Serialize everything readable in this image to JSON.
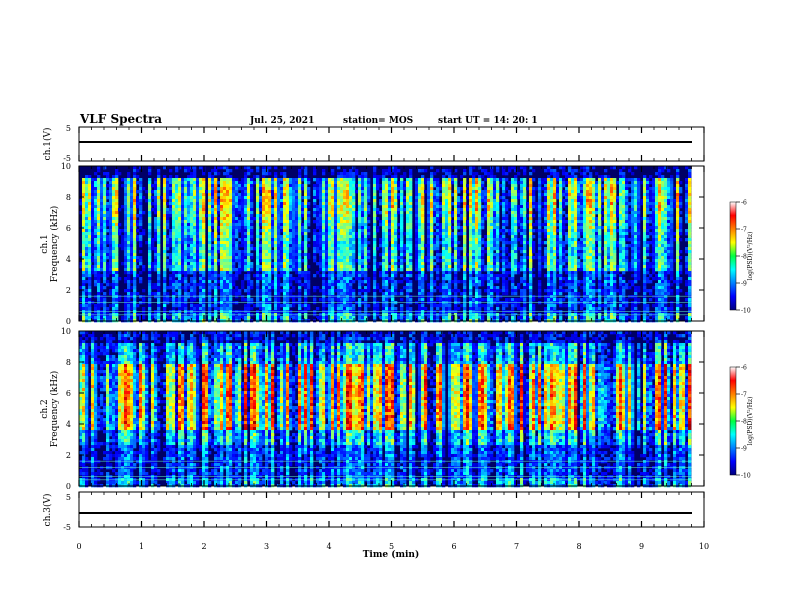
{
  "header": {
    "title": "VLF Spectra",
    "date": "Jul. 25, 2021",
    "station": "station= MOS",
    "start_ut": "start UT = 14: 20: 1"
  },
  "chart_data": [
    {
      "type": "line",
      "ylabel": "ch.1(V)",
      "ylim": [
        -5,
        5
      ],
      "yticks": [
        "5",
        "-5"
      ],
      "xlim": [
        0,
        10
      ],
      "series": [
        {
          "x": [
            0,
            9.8
          ],
          "y": [
            0,
            0
          ]
        }
      ]
    },
    {
      "type": "heatmap",
      "ylabel_line1": "ch.1",
      "ylabel_line2": "Frequency (kHz)",
      "ylim": [
        0,
        10
      ],
      "yticks": [
        "10",
        "8",
        "6",
        "4",
        "2",
        "0"
      ],
      "xlim": [
        0,
        10
      ],
      "colorbar": {
        "label": "log(PSD)(V²/Hz)",
        "range": [
          -10,
          -6
        ],
        "ticks": [
          "-6",
          "-7",
          "-8",
          "-9",
          "-10"
        ]
      }
    },
    {
      "type": "heatmap",
      "ylabel_line1": "ch.2",
      "ylabel_line2": "Frequency (kHz)",
      "ylim": [
        0,
        10
      ],
      "yticks": [
        "10",
        "8",
        "6",
        "4",
        "2",
        "0"
      ],
      "xlim": [
        0,
        10
      ],
      "colorbar": {
        "label": "log(PSD)(V²/Hz)",
        "range": [
          -10,
          -6
        ],
        "ticks": [
          "-6",
          "-7",
          "-8",
          "-9",
          "-10"
        ]
      }
    },
    {
      "type": "line",
      "ylabel": "ch.3(V)",
      "ylim": [
        -5,
        5
      ],
      "yticks": [
        "5",
        "-5"
      ],
      "xlim": [
        0,
        10
      ],
      "xticks": [
        "0",
        "1",
        "2",
        "3",
        "4",
        "5",
        "6",
        "7",
        "8",
        "9",
        "10"
      ],
      "xlabel": "Time (min)",
      "series": [
        {
          "x": [
            0,
            9.8
          ],
          "y": [
            -1,
            -1
          ]
        }
      ]
    }
  ]
}
